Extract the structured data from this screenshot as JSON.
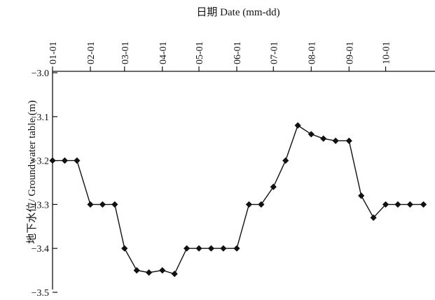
{
  "chart_data": {
    "type": "line",
    "title": "",
    "xlabel": "日期  Date (mm-dd)",
    "ylabel": "地下水位/ Groundwater table (m)",
    "x_tick_labels": [
      "01-01",
      "02-01",
      "03-01",
      "04-01",
      "05-01",
      "06-01",
      "07-01",
      "08-01",
      "09-01",
      "10-01"
    ],
    "y_tick_labels": [
      "-3.0",
      "-3.1",
      "-3.2",
      "-3.3",
      "-3.4",
      "-3.5"
    ],
    "ylim": [
      -3.5,
      -3.0
    ],
    "y_reversed": true,
    "x_axis_position": "top",
    "series": [
      {
        "x": [
          "01-01",
          "01-11",
          "01-21",
          "02-01",
          "02-11",
          "02-21",
          "03-01",
          "03-11",
          "03-21",
          "04-01",
          "04-11",
          "04-21",
          "05-01",
          "05-11",
          "05-21",
          "06-01",
          "06-11",
          "06-21",
          "07-01",
          "07-11",
          "07-21",
          "08-01",
          "08-11",
          "08-21",
          "09-01",
          "09-11",
          "09-21",
          "10-01",
          "10-11",
          "10-21",
          "11-01"
        ],
        "y": [
          -3.2,
          -3.2,
          -3.2,
          -3.3,
          -3.3,
          -3.3,
          -3.4,
          -3.45,
          -3.455,
          -3.45,
          -3.458,
          -3.4,
          -3.4,
          -3.4,
          -3.4,
          -3.4,
          -3.3,
          -3.3,
          -3.26,
          -3.2,
          -3.12,
          -3.14,
          -3.15,
          -3.155,
          -3.155,
          -3.28,
          -3.33,
          -3.3,
          -3.3,
          -3.3,
          -3.3
        ]
      }
    ]
  }
}
